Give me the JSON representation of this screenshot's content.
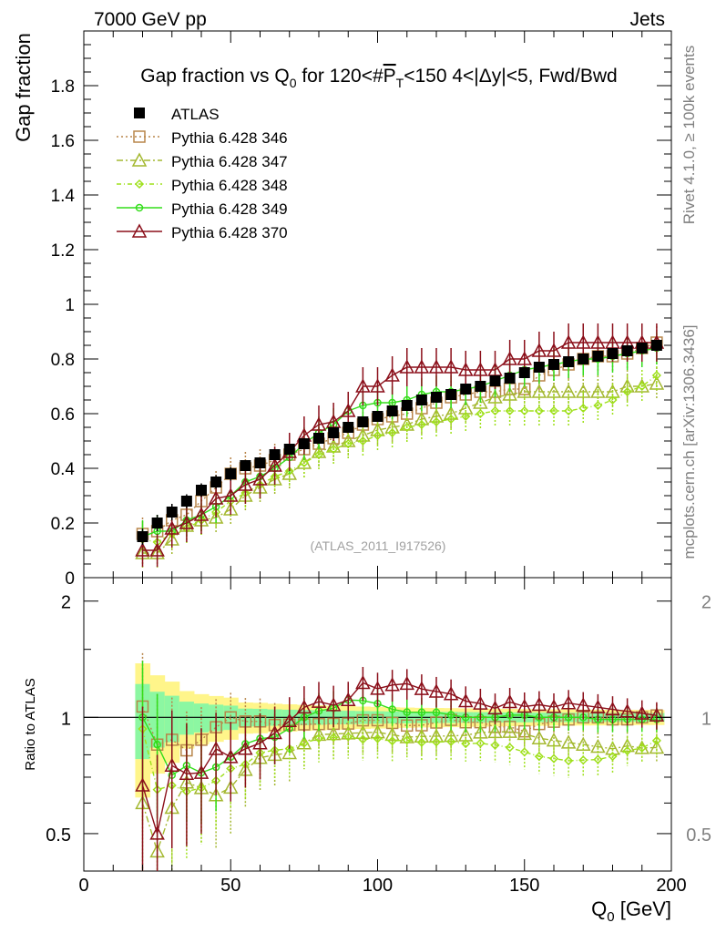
{
  "header": {
    "left": "7000 GeV pp",
    "right": "Jets"
  },
  "side": {
    "upper": "Rivet 4.1.0, ≥ 100k events",
    "lower": "mcplots.cern.ch [arXiv:1306.3436]"
  },
  "colors": {
    "atlas": "#000000",
    "p346": "#b8854a",
    "p347": "#a4b830",
    "p348": "#9ee01a",
    "p349": "#33dd1a",
    "p370": "#8b0f1a",
    "band_yellow": "#fff58a",
    "band_green": "#8cf7a2"
  },
  "chart_data": {
    "type": "scatter",
    "title": "Gap fraction vs Q0 for 120<#PT<150  4<|Δy|<5, Fwd/Bwd",
    "title_parts": {
      "a": "Gap fraction vs Q",
      "b": "0",
      "c": " for 120<#",
      "d": "P",
      "e": "T",
      "f": "<150  4<|Δy|<5, Fwd/Bwd"
    },
    "watermark": "(ATLAS_2011_I917526)",
    "ylabel": "Gap fraction",
    "ratio_ylabel": "Ratio to ATLAS",
    "xlabel": "Q0 [GeV]",
    "xlabel_parts": {
      "a": "Q",
      "b": "0",
      "c": " [GeV]"
    },
    "xlim": [
      0,
      200
    ],
    "ylim": [
      0,
      2.0
    ],
    "ratio_ylim": [
      0.4,
      2.3
    ],
    "x_ticks": [
      "0",
      "50",
      "100",
      "150",
      "200"
    ],
    "y_ticks": [
      "0",
      "0.2",
      "0.4",
      "0.6",
      "0.8",
      "1",
      "1.2",
      "1.4",
      "1.6",
      "1.8"
    ],
    "ratio_ticks": [
      "0.5",
      "1",
      "2"
    ],
    "x": [
      20,
      25,
      30,
      35,
      40,
      45,
      50,
      55,
      60,
      65,
      70,
      75,
      80,
      85,
      90,
      95,
      100,
      105,
      110,
      115,
      120,
      125,
      130,
      135,
      140,
      145,
      150,
      155,
      160,
      165,
      170,
      175,
      180,
      185,
      190,
      195
    ],
    "reference": {
      "name": "ATLAS",
      "values": [
        0.15,
        0.2,
        0.24,
        0.28,
        0.32,
        0.35,
        0.38,
        0.41,
        0.42,
        0.45,
        0.47,
        0.49,
        0.51,
        0.53,
        0.55,
        0.57,
        0.59,
        0.61,
        0.63,
        0.65,
        0.66,
        0.67,
        0.69,
        0.7,
        0.72,
        0.73,
        0.75,
        0.77,
        0.78,
        0.79,
        0.8,
        0.81,
        0.82,
        0.83,
        0.84,
        0.85
      ],
      "errors": [
        0.03,
        0.03,
        0.03,
        0.025,
        0.025,
        0.025,
        0.025,
        0.02,
        0.02,
        0.02,
        0.02,
        0.02,
        0.02,
        0.02,
        0.02,
        0.02,
        0.02,
        0.02,
        0.02,
        0.02,
        0.02,
        0.02,
        0.02,
        0.02,
        0.02,
        0.02,
        0.02,
        0.02,
        0.02,
        0.02,
        0.02,
        0.02,
        0.02,
        0.02,
        0.02,
        0.02
      ]
    },
    "series": [
      {
        "name": "Pythia 6.428 346",
        "style": "p346",
        "marker": "square",
        "dash": "2,3",
        "values": [
          0.16,
          0.17,
          0.21,
          0.23,
          0.28,
          0.33,
          0.38,
          0.4,
          0.41,
          0.43,
          0.45,
          0.47,
          0.49,
          0.51,
          0.53,
          0.56,
          0.58,
          0.59,
          0.6,
          0.62,
          0.64,
          0.66,
          0.67,
          0.68,
          0.68,
          0.69,
          0.69,
          0.74,
          0.76,
          0.78,
          0.8,
          0.81,
          0.81,
          0.82,
          0.84,
          0.86
        ],
        "errors": [
          0.06,
          0.06,
          0.06,
          0.06,
          0.06,
          0.06,
          0.06,
          0.06,
          0.06,
          0.06,
          0.06,
          0.06,
          0.06,
          0.06,
          0.06,
          0.06,
          0.06,
          0.06,
          0.06,
          0.06,
          0.06,
          0.06,
          0.06,
          0.06,
          0.06,
          0.06,
          0.06,
          0.06,
          0.06,
          0.06,
          0.06,
          0.06,
          0.06,
          0.06,
          0.06,
          0.06
        ]
      },
      {
        "name": "Pythia 6.428 347",
        "style": "p347",
        "marker": "triangle",
        "dash": "7,3,2,3",
        "values": [
          0.09,
          0.09,
          0.14,
          0.19,
          0.21,
          0.22,
          0.25,
          0.3,
          0.33,
          0.36,
          0.38,
          0.42,
          0.46,
          0.48,
          0.5,
          0.52,
          0.54,
          0.55,
          0.56,
          0.58,
          0.59,
          0.6,
          0.62,
          0.64,
          0.66,
          0.67,
          0.68,
          0.68,
          0.68,
          0.68,
          0.68,
          0.68,
          0.68,
          0.7,
          0.7,
          0.71
        ],
        "errors": [
          0.06,
          0.06,
          0.06,
          0.06,
          0.06,
          0.06,
          0.06,
          0.06,
          0.06,
          0.06,
          0.06,
          0.06,
          0.06,
          0.06,
          0.06,
          0.06,
          0.06,
          0.06,
          0.06,
          0.06,
          0.06,
          0.06,
          0.06,
          0.06,
          0.06,
          0.06,
          0.06,
          0.06,
          0.06,
          0.06,
          0.06,
          0.06,
          0.06,
          0.06,
          0.06,
          0.06
        ]
      },
      {
        "name": "Pythia 6.428 348",
        "style": "p348",
        "marker": "diamond",
        "dash": "5,3,1,3",
        "values": [
          0.14,
          0.13,
          0.16,
          0.18,
          0.21,
          0.24,
          0.28,
          0.31,
          0.34,
          0.37,
          0.39,
          0.42,
          0.45,
          0.47,
          0.49,
          0.5,
          0.52,
          0.53,
          0.55,
          0.56,
          0.57,
          0.58,
          0.59,
          0.6,
          0.61,
          0.61,
          0.61,
          0.61,
          0.61,
          0.61,
          0.62,
          0.63,
          0.65,
          0.68,
          0.7,
          0.74
        ],
        "errors": [
          0.06,
          0.06,
          0.06,
          0.06,
          0.06,
          0.06,
          0.06,
          0.06,
          0.06,
          0.06,
          0.06,
          0.06,
          0.06,
          0.06,
          0.06,
          0.06,
          0.06,
          0.06,
          0.06,
          0.06,
          0.06,
          0.06,
          0.06,
          0.06,
          0.06,
          0.06,
          0.06,
          0.06,
          0.06,
          0.06,
          0.06,
          0.06,
          0.06,
          0.06,
          0.06,
          0.06
        ]
      },
      {
        "name": "Pythia 6.428 349",
        "style": "p349",
        "marker": "circle",
        "dash": "",
        "values": [
          0.15,
          0.17,
          0.17,
          0.21,
          0.23,
          0.26,
          0.3,
          0.35,
          0.37,
          0.4,
          0.44,
          0.49,
          0.53,
          0.56,
          0.61,
          0.63,
          0.64,
          0.64,
          0.65,
          0.67,
          0.68,
          0.68,
          0.69,
          0.7,
          0.72,
          0.74,
          0.76,
          0.77,
          0.78,
          0.79,
          0.8,
          0.8,
          0.81,
          0.82,
          0.83,
          0.84
        ],
        "errors": [
          0.06,
          0.06,
          0.06,
          0.06,
          0.06,
          0.06,
          0.06,
          0.06,
          0.06,
          0.06,
          0.06,
          0.06,
          0.06,
          0.06,
          0.06,
          0.06,
          0.06,
          0.06,
          0.06,
          0.06,
          0.06,
          0.06,
          0.06,
          0.06,
          0.06,
          0.06,
          0.06,
          0.06,
          0.06,
          0.06,
          0.06,
          0.06,
          0.06,
          0.06,
          0.06,
          0.06
        ]
      },
      {
        "name": "Pythia 6.428 370",
        "style": "p370",
        "marker": "triangle",
        "dash": "",
        "values": [
          0.1,
          0.1,
          0.18,
          0.2,
          0.23,
          0.29,
          0.3,
          0.34,
          0.36,
          0.41,
          0.46,
          0.52,
          0.56,
          0.57,
          0.61,
          0.7,
          0.7,
          0.74,
          0.77,
          0.77,
          0.77,
          0.77,
          0.76,
          0.76,
          0.76,
          0.8,
          0.8,
          0.83,
          0.83,
          0.86,
          0.86,
          0.86,
          0.86,
          0.86,
          0.86,
          0.86
        ],
        "errors": [
          0.06,
          0.06,
          0.07,
          0.07,
          0.07,
          0.07,
          0.07,
          0.07,
          0.07,
          0.07,
          0.07,
          0.07,
          0.07,
          0.07,
          0.07,
          0.07,
          0.07,
          0.07,
          0.07,
          0.07,
          0.07,
          0.07,
          0.07,
          0.07,
          0.07,
          0.07,
          0.07,
          0.07,
          0.07,
          0.07,
          0.07,
          0.07,
          0.07,
          0.07,
          0.07,
          0.07
        ]
      }
    ]
  }
}
